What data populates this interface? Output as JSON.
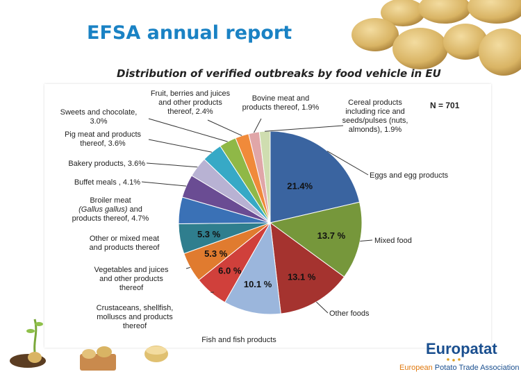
{
  "slide": {
    "title": "EFSA annual report",
    "subtitle": "Distribution of verified outbreaks by food vehicle in EU"
  },
  "logo": {
    "wordmark": "Europatat",
    "association_part1": "European",
    "association_part2": "Potato Trade Association"
  },
  "colors": {
    "title": "#1a82c4"
  },
  "chart_data": {
    "type": "pie",
    "title": "Distribution of verified outbreaks by food vehicle in EU",
    "annotation": "N = 701",
    "slices": [
      {
        "label": "Eggs and egg products",
        "value": 21.4,
        "color": "#3a64a0",
        "pct_label": "21.4%"
      },
      {
        "label": "Mixed food",
        "value": 13.7,
        "color": "#76973b",
        "pct_label": "13.7 %"
      },
      {
        "label": "Other foods",
        "value": 13.1,
        "color": "#a5332f",
        "pct_label": "13.1 %"
      },
      {
        "label": "Fish and fish products",
        "value": 10.1,
        "color": "#9bb6dc",
        "pct_label": "10.1 %"
      },
      {
        "label": "Crustaceans, shellfish, molluscs and products thereof",
        "value": 6.0,
        "color": "#d0403b",
        "pct_label": "6.0 %"
      },
      {
        "label": "Vegetables and juices and other products thereof",
        "value": 5.3,
        "color": "#e07b2f",
        "pct_label": "5.3 %"
      },
      {
        "label": "Other or mixed meat and products thereof",
        "value": 5.3,
        "color": "#2f7e8e",
        "pct_label": "5.3 %"
      },
      {
        "label": "Broiler meat (Gallus gallus) and products thereof, 4.7%",
        "value": 4.7,
        "color": "#3a71b6",
        "pct_label": ""
      },
      {
        "label": "Buffet meals , 4.1%",
        "value": 4.1,
        "color": "#6a4c93",
        "pct_label": ""
      },
      {
        "label": "Bakery products, 3.6%",
        "value": 3.6,
        "color": "#b8b2d3",
        "pct_label": ""
      },
      {
        "label": "Pig meat and products thereof, 3.6%",
        "value": 3.6,
        "color": "#37a9c6",
        "pct_label": ""
      },
      {
        "label": "Sweets and chocolate, 3.0%",
        "value": 3.0,
        "color": "#8fb847",
        "pct_label": ""
      },
      {
        "label": "Fruit, berries and juices and other products thereof, 2.4%",
        "value": 2.4,
        "color": "#f08a3a",
        "pct_label": ""
      },
      {
        "label": "Bovine meat and products thereof, 1.9%",
        "value": 1.9,
        "color": "#e0a6a8",
        "pct_label": ""
      },
      {
        "label": "Cereal products including rice and seeds/pulses (nuts, almonds), 1.9%",
        "value": 1.9,
        "color": "#cfddb0",
        "pct_label": ""
      }
    ]
  }
}
